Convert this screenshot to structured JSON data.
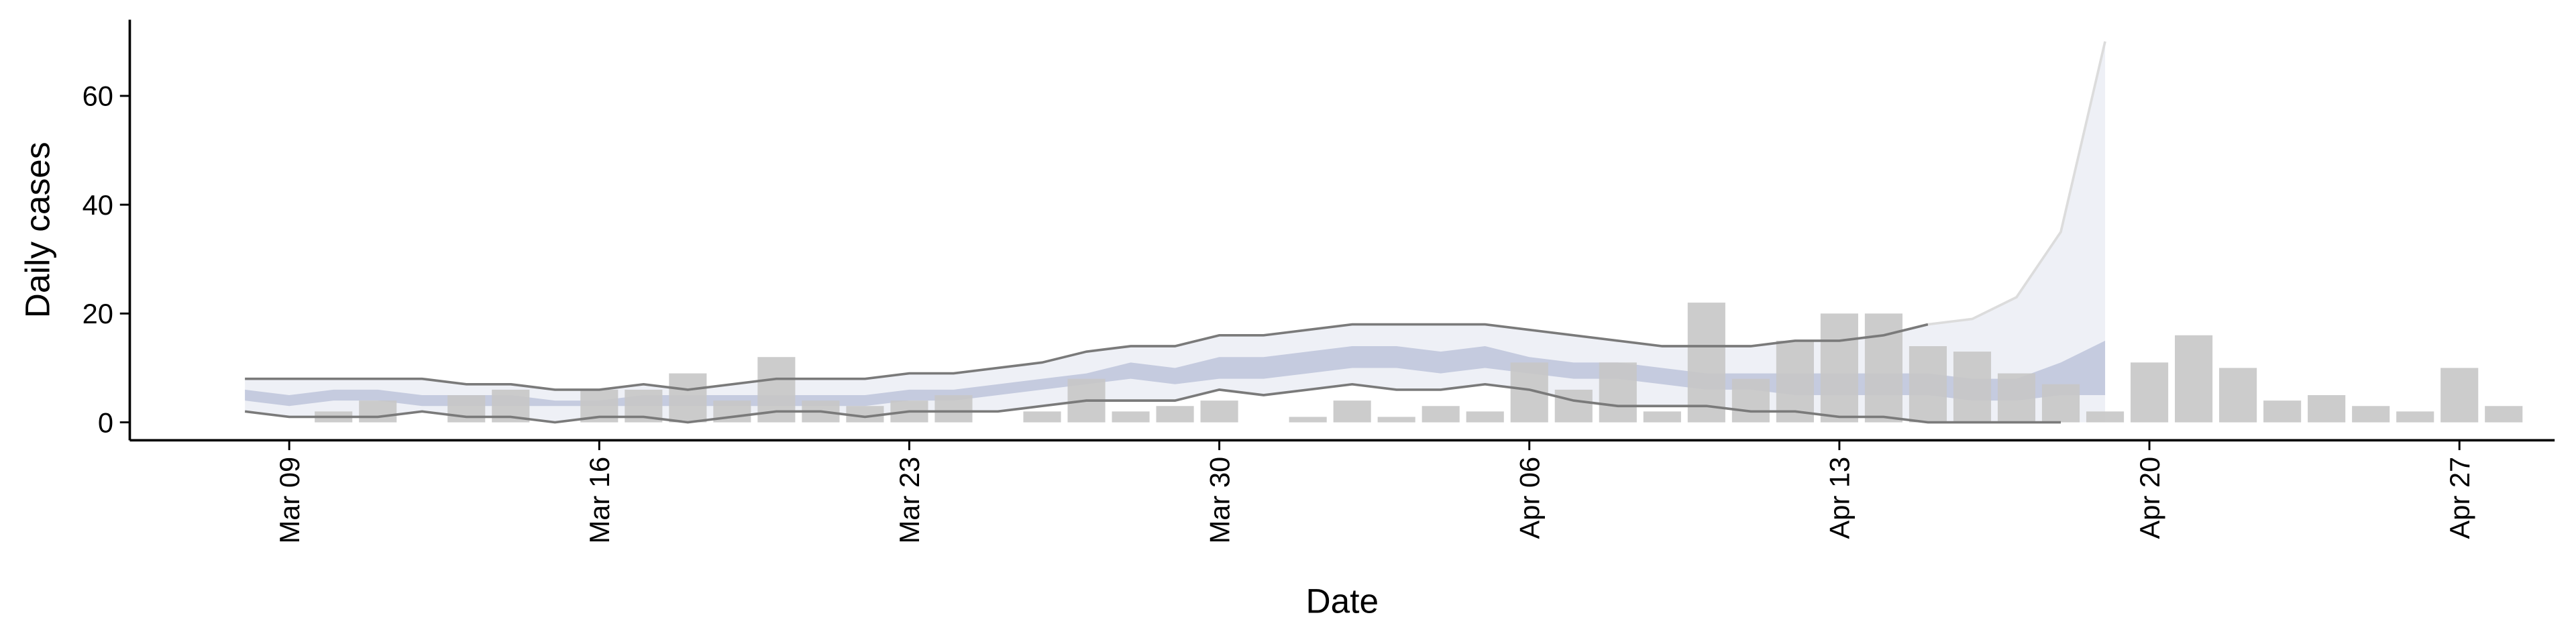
{
  "chart_data": {
    "type": "combo",
    "xlabel": "Date",
    "ylabel": "Daily cases",
    "ylim": [
      -3.3,
      74
    ],
    "yticks": [
      0,
      20,
      40,
      60
    ],
    "categories": [
      null,
      "Mar 09",
      null,
      null,
      null,
      null,
      null,
      null,
      "Mar 16",
      null,
      null,
      null,
      null,
      null,
      null,
      "Mar 23",
      null,
      null,
      null,
      null,
      null,
      null,
      "Mar 30",
      null,
      null,
      null,
      null,
      null,
      null,
      "Apr 06",
      null,
      null,
      null,
      null,
      null,
      null,
      "Apr 13",
      null,
      null,
      null,
      null,
      null,
      null,
      "Apr 20",
      null,
      null,
      null,
      null,
      null,
      null,
      "Apr 27",
      null
    ],
    "series": [
      {
        "type": "area",
        "color": "#eef0f6",
        "high": [
          8,
          8,
          8,
          8,
          8,
          7,
          7,
          6,
          6,
          7,
          6,
          7,
          8,
          8,
          8,
          9,
          9,
          10,
          11,
          13,
          14,
          14,
          16,
          16,
          17,
          18,
          18,
          18,
          18,
          17,
          16,
          15,
          14,
          14,
          14,
          15,
          15,
          16,
          18,
          19,
          23,
          35,
          70,
          null,
          null,
          null,
          null,
          null,
          null,
          null,
          null,
          null
        ],
        "low": [
          2,
          1,
          1,
          1,
          2,
          1,
          1,
          0,
          1,
          1,
          0,
          1,
          2,
          2,
          1,
          2,
          2,
          2,
          3,
          4,
          4,
          4,
          6,
          5,
          6,
          7,
          6,
          6,
          7,
          6,
          4,
          3,
          3,
          3,
          2,
          2,
          1,
          1,
          0,
          0,
          0,
          0,
          0,
          null,
          null,
          null,
          null,
          null,
          null,
          null,
          null,
          null
        ]
      },
      {
        "type": "area",
        "color": "#c5cbdf",
        "high": [
          6,
          5,
          6,
          6,
          5,
          5,
          5,
          4,
          4,
          5,
          5,
          5,
          5,
          5,
          5,
          6,
          6,
          7,
          8,
          9,
          11,
          10,
          12,
          12,
          13,
          14,
          14,
          13,
          14,
          12,
          11,
          11,
          10,
          9,
          9,
          9,
          9,
          9,
          9,
          8,
          8,
          11,
          15,
          null,
          null,
          null,
          null,
          null,
          null,
          null,
          null,
          null
        ],
        "low": [
          4,
          3,
          4,
          4,
          3,
          3,
          3,
          3,
          3,
          3,
          3,
          3,
          3,
          3,
          3,
          4,
          4,
          5,
          6,
          7,
          8,
          7,
          8,
          8,
          9,
          10,
          10,
          9,
          10,
          9,
          8,
          8,
          7,
          6,
          6,
          5,
          5,
          5,
          5,
          4,
          4,
          5,
          5,
          null,
          null,
          null,
          null,
          null,
          null,
          null,
          null,
          null
        ]
      },
      {
        "type": "bar",
        "color": "#c6c6c6",
        "values": [
          0,
          0,
          2,
          4,
          0,
          5,
          6,
          0,
          6,
          6,
          9,
          4,
          12,
          4,
          3,
          4,
          5,
          0,
          2,
          8,
          2,
          3,
          4,
          0,
          1,
          4,
          1,
          3,
          2,
          11,
          6,
          11,
          2,
          22,
          8,
          15,
          20,
          20,
          14,
          13,
          9,
          7,
          2,
          11,
          16,
          10,
          4,
          5,
          3,
          2,
          10,
          3
        ]
      },
      {
        "type": "line",
        "color": "#7a7a7a",
        "values": [
          8,
          8,
          8,
          8,
          8,
          7,
          7,
          6,
          6,
          7,
          6,
          7,
          8,
          8,
          8,
          9,
          9,
          10,
          11,
          13,
          14,
          14,
          16,
          16,
          17,
          18,
          18,
          18,
          18,
          17,
          16,
          15,
          14,
          14,
          14,
          15,
          15,
          16,
          18,
          null,
          null,
          null,
          null,
          null,
          null,
          null,
          null,
          null,
          null,
          null,
          null,
          null
        ]
      },
      {
        "type": "line",
        "color": "#dcdcdc",
        "values": [
          null,
          null,
          null,
          null,
          null,
          null,
          null,
          null,
          null,
          null,
          null,
          null,
          null,
          null,
          null,
          null,
          null,
          null,
          null,
          null,
          null,
          null,
          null,
          null,
          null,
          null,
          null,
          null,
          null,
          null,
          null,
          null,
          null,
          null,
          null,
          null,
          null,
          null,
          18,
          19,
          23,
          35,
          70,
          null,
          null,
          null,
          null,
          null,
          null,
          null,
          null,
          null
        ]
      },
      {
        "type": "line",
        "color": "#7a7a7a",
        "values": [
          2,
          1,
          1,
          1,
          2,
          1,
          1,
          0,
          1,
          1,
          0,
          1,
          2,
          2,
          1,
          2,
          2,
          2,
          3,
          4,
          4,
          4,
          6,
          5,
          6,
          7,
          6,
          6,
          7,
          6,
          4,
          3,
          3,
          3,
          2,
          2,
          1,
          1,
          0,
          0,
          0,
          0,
          null,
          null,
          null,
          null,
          null,
          null,
          null,
          null,
          null,
          null
        ]
      }
    ]
  }
}
